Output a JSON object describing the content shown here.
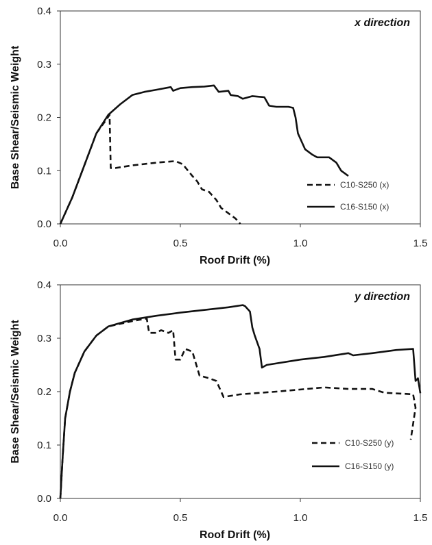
{
  "chart_data": [
    {
      "type": "line",
      "corner_label": "x direction",
      "xlabel": "Roof Drift (%)",
      "ylabel": "Base Shear/Seismic Weight",
      "xlim": [
        0,
        1.5
      ],
      "ylim": [
        0,
        0.4
      ],
      "xticks": [
        "0.0",
        "0.5",
        "1.0",
        "1.5"
      ],
      "yticks": [
        "0.0",
        "0.1",
        "0.2",
        "0.3",
        "0.4"
      ],
      "legend_position": "bottom-right",
      "grid": false,
      "series": [
        {
          "name": "C10-S250 (x)",
          "style": "dashed",
          "color": "#111111",
          "points": [
            [
              0,
              0
            ],
            [
              0.05,
              0.05
            ],
            [
              0.1,
              0.11
            ],
            [
              0.15,
              0.17
            ],
            [
              0.19,
              0.195
            ],
            [
              0.205,
              0.205
            ],
            [
              0.21,
              0.105
            ],
            [
              0.23,
              0.105
            ],
            [
              0.3,
              0.11
            ],
            [
              0.4,
              0.115
            ],
            [
              0.48,
              0.118
            ],
            [
              0.51,
              0.112
            ],
            [
              0.55,
              0.09
            ],
            [
              0.57,
              0.08
            ],
            [
              0.59,
              0.065
            ],
            [
              0.62,
              0.06
            ],
            [
              0.65,
              0.045
            ],
            [
              0.67,
              0.03
            ],
            [
              0.7,
              0.02
            ],
            [
              0.73,
              0.01
            ],
            [
              0.75,
              0.0
            ]
          ]
        },
        {
          "name": "C16-S150 (x)",
          "style": "solid",
          "color": "#111111",
          "points": [
            [
              0,
              0
            ],
            [
              0.05,
              0.05
            ],
            [
              0.1,
              0.11
            ],
            [
              0.15,
              0.17
            ],
            [
              0.2,
              0.205
            ],
            [
              0.25,
              0.225
            ],
            [
              0.3,
              0.242
            ],
            [
              0.35,
              0.248
            ],
            [
              0.4,
              0.252
            ],
            [
              0.46,
              0.257
            ],
            [
              0.47,
              0.25
            ],
            [
              0.5,
              0.255
            ],
            [
              0.55,
              0.257
            ],
            [
              0.6,
              0.258
            ],
            [
              0.64,
              0.26
            ],
            [
              0.66,
              0.248
            ],
            [
              0.7,
              0.25
            ],
            [
              0.71,
              0.242
            ],
            [
              0.74,
              0.24
            ],
            [
              0.76,
              0.235
            ],
            [
              0.8,
              0.24
            ],
            [
              0.85,
              0.238
            ],
            [
              0.87,
              0.222
            ],
            [
              0.9,
              0.22
            ],
            [
              0.95,
              0.22
            ],
            [
              0.97,
              0.218
            ],
            [
              0.98,
              0.2
            ],
            [
              0.99,
              0.17
            ],
            [
              1.0,
              0.16
            ],
            [
              1.02,
              0.14
            ],
            [
              1.05,
              0.13
            ],
            [
              1.07,
              0.125
            ],
            [
              1.12,
              0.125
            ],
            [
              1.15,
              0.115
            ],
            [
              1.17,
              0.1
            ],
            [
              1.2,
              0.09
            ]
          ]
        }
      ]
    },
    {
      "type": "line",
      "corner_label": "y direction",
      "xlabel": "Roof Drift (%)",
      "ylabel": "Base Shear/Seismic Weight",
      "xlim": [
        0,
        1.5
      ],
      "ylim": [
        0,
        0.4
      ],
      "xticks": [
        "0.0",
        "0.5",
        "1.0",
        "1.5"
      ],
      "yticks": [
        "0.0",
        "0.1",
        "0.2",
        "0.3",
        "0.4"
      ],
      "legend_position": "bottom-right",
      "grid": false,
      "series": [
        {
          "name": "C10-S250 (y)",
          "style": "dashed",
          "color": "#111111",
          "points": [
            [
              0,
              0
            ],
            [
              0.01,
              0.08
            ],
            [
              0.02,
              0.15
            ],
            [
              0.04,
              0.2
            ],
            [
              0.06,
              0.235
            ],
            [
              0.1,
              0.275
            ],
            [
              0.15,
              0.305
            ],
            [
              0.2,
              0.322
            ],
            [
              0.3,
              0.332
            ],
            [
              0.36,
              0.337
            ],
            [
              0.37,
              0.31
            ],
            [
              0.4,
              0.31
            ],
            [
              0.42,
              0.315
            ],
            [
              0.45,
              0.31
            ],
            [
              0.47,
              0.315
            ],
            [
              0.48,
              0.26
            ],
            [
              0.5,
              0.26
            ],
            [
              0.52,
              0.28
            ],
            [
              0.55,
              0.275
            ],
            [
              0.58,
              0.23
            ],
            [
              0.62,
              0.225
            ],
            [
              0.65,
              0.22
            ],
            [
              0.68,
              0.19
            ],
            [
              0.75,
              0.195
            ],
            [
              0.9,
              0.2
            ],
            [
              1.1,
              0.208
            ],
            [
              1.2,
              0.205
            ],
            [
              1.3,
              0.205
            ],
            [
              1.35,
              0.198
            ],
            [
              1.47,
              0.195
            ],
            [
              1.48,
              0.17
            ],
            [
              1.46,
              0.11
            ]
          ]
        },
        {
          "name": "C16-S150 (y)",
          "style": "solid",
          "color": "#111111",
          "points": [
            [
              0,
              0
            ],
            [
              0.01,
              0.08
            ],
            [
              0.02,
              0.15
            ],
            [
              0.04,
              0.2
            ],
            [
              0.06,
              0.235
            ],
            [
              0.1,
              0.275
            ],
            [
              0.15,
              0.305
            ],
            [
              0.2,
              0.322
            ],
            [
              0.3,
              0.335
            ],
            [
              0.4,
              0.342
            ],
            [
              0.5,
              0.348
            ],
            [
              0.6,
              0.353
            ],
            [
              0.7,
              0.358
            ],
            [
              0.76,
              0.362
            ],
            [
              0.77,
              0.36
            ],
            [
              0.79,
              0.35
            ],
            [
              0.8,
              0.32
            ],
            [
              0.81,
              0.305
            ],
            [
              0.83,
              0.28
            ],
            [
              0.84,
              0.245
            ],
            [
              0.86,
              0.25
            ],
            [
              1.0,
              0.26
            ],
            [
              1.1,
              0.265
            ],
            [
              1.2,
              0.272
            ],
            [
              1.22,
              0.268
            ],
            [
              1.3,
              0.272
            ],
            [
              1.4,
              0.278
            ],
            [
              1.47,
              0.28
            ],
            [
              1.48,
              0.22
            ],
            [
              1.49,
              0.225
            ],
            [
              1.5,
              0.197
            ]
          ]
        }
      ]
    }
  ]
}
